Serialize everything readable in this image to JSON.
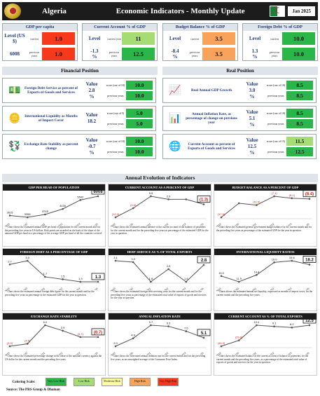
{
  "header": {
    "country": "Algeria",
    "title": "Economic Indicators - Monthly Update",
    "date": "Jan 2025"
  },
  "colors": {
    "red": "#f7381a",
    "orange": "#f9a25a",
    "lightgreen": "#a6dc74",
    "green": "#2bb64a",
    "yellow": "#ffffa0"
  },
  "top": [
    {
      "title": "GDP per capita",
      "label": "Level (US $)",
      "value": "6008",
      "y1": "current",
      "y2": "previous years",
      "c1": "1.0",
      "c2": "1.0",
      "k1": "red",
      "k2": "red"
    },
    {
      "title": "Current Account % of GDP",
      "label": "Level",
      "value": "-1.3",
      "unit": "%",
      "y1": "current year",
      "y2": "previous years",
      "c1": "11",
      "c2": "12.5",
      "k1": "lightgreen",
      "k2": "green"
    },
    {
      "title": "Budget Balance % of GDP",
      "label": "Level",
      "value": "-8.4",
      "unit": "%",
      "y1": "current",
      "y2": "previous years",
      "c1": "3.5",
      "c2": "3.5",
      "k1": "orange",
      "k2": "orange"
    },
    {
      "title": "Foreign Debt % of GDP",
      "label": "Level",
      "value": "1.3",
      "unit": "%",
      "y1": "current",
      "y2": "previous years",
      "c1": "10.0",
      "c2": "10.0",
      "k1": "green",
      "k2": "green"
    }
  ],
  "sections": {
    "financial": "Financial Position",
    "real": "Real Position",
    "annual": "Annual Evolution of Indicators"
  },
  "financial": [
    {
      "icon": "money-icon",
      "name": "Foreign Debt Service as percent of Exports of Goods and Services",
      "vlabel": "Value",
      "value": "2.8",
      "unit": "%",
      "y1": "score (out of 10)",
      "y2": "previous years",
      "c1": "10.0",
      "c2": "10.0"
    },
    {
      "icon": "coins-icon",
      "name": "International Liquidity as Months of Import Cover",
      "vlabel": "Value",
      "value": "18.2",
      "unit": "",
      "y1": "score (out of 5)",
      "y2": "previous years",
      "c1": "5.0",
      "c2": "5.0"
    },
    {
      "icon": "exchange-icon",
      "name": "Exchange Rate Stability as percent change",
      "vlabel": "Value",
      "value": "-0.7",
      "unit": "%",
      "y1": "score (out of 10)",
      "y2": "previous years",
      "c1": "10.0",
      "c2": "10.0"
    }
  ],
  "real": [
    {
      "icon": "growth-icon",
      "name": "Real Annual GDP Growth",
      "vlabel": "Value",
      "value": "3.0",
      "unit": "%",
      "y1": "score (out of 10)",
      "y2": "previous years",
      "c1": "8.5",
      "c2": "8.5"
    },
    {
      "icon": "inflation-icon",
      "name": "Annual Inflation Rate, as percentage of change on previous year",
      "vlabel": "Value",
      "value": "5.1",
      "unit": "%",
      "y1": "score (out of 10)",
      "y2": "previous years",
      "c1": "8.5",
      "c2": "8.5"
    },
    {
      "icon": "globe-icon",
      "name": "Current Account as percent of Exports of Goods and Services",
      "vlabel": "Value",
      "value": "12.5",
      "unit": "%",
      "y1": "score (out of 15)",
      "y2": "previous years",
      "c1": "11.5",
      "c2": "12.5"
    }
  ],
  "chart_data": [
    {
      "type": "line",
      "title": "GDP PER HEAD OF POPULATION",
      "categories": [
        "2019",
        "2020",
        "2021",
        "2022",
        "2023",
        "Current 01/25"
      ],
      "values": [
        3615,
        3396,
        3745,
        4430,
        5542,
        6008
      ],
      "labels": [
        "3615",
        "3396",
        "3745",
        "4430",
        "5542",
        "6008"
      ],
      "note": "**Chart shows the estimated annual GDP per head of population for the current month and for the preceding five years in US dollars. Risk points are awarded on the basis of the share of the national GDP per head as a percentage of the average GDP per head of all the countries covered."
    },
    {
      "type": "line",
      "title": "CURRENT ACCOUNT AS A PERCENT OF GDP",
      "categories": [
        "2019",
        "2020",
        "2021",
        "2022",
        "2023",
        "Current 01/25"
      ],
      "values": [
        -12.3,
        -4.6,
        5.5,
        2.9,
        2.9,
        -1.3
      ],
      "labels": [
        "(12.3)",
        "(4.6)",
        "5.5",
        "2.9",
        "",
        "(1.3)"
      ],
      "note": "**Chart shows the estimated annual balance of the current account of the balance of payments for the current month and for the preceding five years as percentage of the estimated GDP for the year in question."
    },
    {
      "type": "line",
      "title": "BUDGET BALANCE AS A PERCENT OF GDP",
      "categories": [
        "2019",
        "2020",
        "2021",
        "2022",
        "2023",
        "Current 01/25"
      ],
      "values": [
        -17.6,
        -10.6,
        -11.5,
        -7.1,
        -8.1,
        -8.4
      ],
      "labels": [
        "(17.6)",
        "",
        "(11.5)",
        "(7.1)",
        "(8.1)",
        "(8.4)"
      ],
      "note": "**Chart shows the estimated general government budget balance for the current month and for the preceding five years as percentage of the estimated GDP for the year in question."
    },
    {
      "type": "line",
      "title": "FOREIGN DEBT AS A PERCENTAGE OF GDP",
      "categories": [
        "2019",
        "2020",
        "2021",
        "2022",
        "2023",
        "Current 01/25"
      ],
      "values": [
        2.7,
        3.0,
        1.7,
        1.5,
        1.3,
        1.3
      ],
      "labels": [
        "2.7",
        "3.0",
        "1.7",
        "1.5",
        "1.3",
        "1.3"
      ],
      "note": "**Chart shows the estimated annual foreign debt figure for the current month and for the preceding five years as percentage of the estimated GDP for the year in question."
    },
    {
      "type": "line",
      "title": "DEBT SERVICE AS % OF TOTAL EXPORTS",
      "categories": [
        "2019",
        "2020",
        "2021",
        "2022",
        "2023",
        "Current 01/25"
      ],
      "values": [
        3.1,
        3.0,
        1.6,
        2.5,
        1.6,
        2.8
      ],
      "labels": [
        "3.1",
        "3.0",
        "1.6",
        "2.5",
        "1.6",
        "2.8"
      ],
      "note": "**Chart shows the estimated foreign debt servicing costs for the current month and for the preceding five years as percentage of the estimated total value of exports of goods and services for the year in question."
    },
    {
      "type": "line",
      "title": "INTERNATIONAL LIQUIDITY RATIOS",
      "categories": [
        "2019",
        "2020",
        "2021",
        "2022",
        "2023",
        "Current 01/25"
      ],
      "values": [
        14.0,
        11.9,
        14.4,
        19.0,
        19.6,
        18.2
      ],
      "labels": [
        "14.0",
        "11.9",
        "14.4",
        "19.0",
        "19.6",
        "18.2"
      ],
      "note": "**Charts shows the estimated annual net liquidity, expressed as months of import cover, for the current month and the preceding five years."
    },
    {
      "type": "line",
      "title": "EXCHANGE RATE STABILITY",
      "categories": [
        "2019",
        "2020",
        "2021",
        "2022",
        "2023",
        "Current 01/25"
      ],
      "values": [
        -5.9,
        -4.5,
        6.0,
        2.9,
        -0.7,
        -0.7
      ],
      "labels": [
        "(5.9)",
        "(4.5)",
        "6.0",
        "2.9",
        "(0.7)",
        "(0.7)"
      ],
      "note": "**Chart shows the estimated percentage change in the value of the national currency against the US dollar for the current month and the preceding five years."
    },
    {
      "type": "line",
      "title": "ANNUAL INFLATION RATE",
      "categories": [
        "2019",
        "2020",
        "2021",
        "2022",
        "2023",
        "Current 01/25"
      ],
      "values": [
        2.0,
        4.9,
        9.7,
        9.3,
        7.5,
        5.1
      ],
      "labels": [
        "2.0",
        "4.9",
        "9.7",
        "9.3",
        "7.5",
        "5.1"
      ],
      "note": "**Chart shows the forecasted annual inflation rate for the current month and for the preceding five years, as an unweighted average of the Consumer Price Index."
    },
    {
      "type": "line",
      "title": "CURRENT ACCOUNT AS % OF TOTAL EXPORTS",
      "categories": [
        "2019",
        "2020",
        "2021",
        "2022",
        "2023",
        "Current 01/25"
      ],
      "values": [
        -46.3,
        -29.9,
        12.4,
        9.1,
        6.2,
        12.5
      ],
      "labels": [
        "(46.3)",
        "(29.9)",
        "12.4",
        "9.1",
        "6.2",
        "12.5"
      ],
      "note": "**Chart shows the estimated balance of the current account of balance of payments, for the current month and the preceding five years, as a percentage of the estimated total value of exports of goods and services for the year in question."
    }
  ],
  "scale": {
    "label": "Coloring Scale:",
    "items": [
      {
        "text": "Very Low Risk",
        "color": "#2bb64a"
      },
      {
        "text": "Low Risk",
        "color": "#a6dc74"
      },
      {
        "text": "Moderate Risk",
        "color": "#ffffa0"
      },
      {
        "text": "High Risk",
        "color": "#f9a25a"
      },
      {
        "text": "Very High Risk",
        "color": "#f7381a"
      }
    ]
  },
  "source": "Source: The PRS Group & Dhaman"
}
